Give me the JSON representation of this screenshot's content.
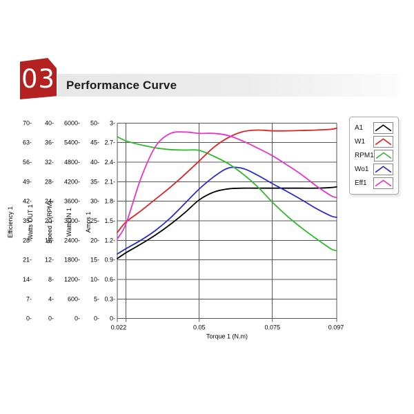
{
  "header": {
    "badge_number": "03",
    "title": "Performance Curve",
    "badge_color": "#b32121"
  },
  "chart_data": {
    "type": "line",
    "title": "Performance Curve",
    "grid": true,
    "legend_position": "top-right",
    "x_axis": {
      "title": "Torque 1 (N.m)",
      "range": [
        0.022,
        0.097
      ],
      "tick_labels": [
        "0.022",
        "0.05",
        "0.075",
        "0.097"
      ],
      "tick_values": [
        0.022,
        0.05,
        0.075,
        0.097
      ],
      "minor_tick_values": [
        0.025
      ],
      "gridline_values": [
        0.025,
        0.05,
        0.075
      ]
    },
    "y_axes": [
      {
        "title": "Efficiency 1",
        "min": 0,
        "max": 70,
        "ticks": [
          "70",
          "63",
          "56",
          "49",
          "42",
          "35",
          "28",
          "21",
          "14",
          "7",
          "0"
        ]
      },
      {
        "title": "Watts OUT 1",
        "min": 0,
        "max": 40,
        "ticks": [
          "40",
          "36",
          "32",
          "28",
          "24",
          "20",
          "16",
          "12",
          "8",
          "4",
          "0"
        ]
      },
      {
        "title": "Speed 1 (RPM)",
        "min": 0,
        "max": 6000,
        "ticks": [
          "6000",
          "5400",
          "4800",
          "4200",
          "3600",
          "3000",
          "2400",
          "1800",
          "1200",
          "600",
          "0"
        ]
      },
      {
        "title": "Watts IN 1",
        "min": 0,
        "max": 50,
        "ticks": [
          "50",
          "45",
          "40",
          "35",
          "30",
          "25",
          "20",
          "15",
          "10",
          "5",
          "0"
        ]
      },
      {
        "title": "Amps 1",
        "min": 0,
        "max": 3,
        "ticks": [
          "3",
          "2.7",
          "2.4",
          "2.1",
          "1.8",
          "1.5",
          "1.2",
          "0.9",
          "0.6",
          "0.3",
          "0"
        ]
      }
    ],
    "x": [
      0.022,
      0.025,
      0.03,
      0.035,
      0.04,
      0.045,
      0.05,
      0.055,
      0.06,
      0.065,
      0.07,
      0.075,
      0.08,
      0.085,
      0.09,
      0.095,
      0.097
    ],
    "series": [
      {
        "name": "A1",
        "color": "#000000",
        "axis": "Amps 1",
        "axis_index": 4,
        "values": [
          0.92,
          1.01,
          1.14,
          1.28,
          1.44,
          1.62,
          1.82,
          1.94,
          1.99,
          2.0,
          2.0,
          2.0,
          2.0,
          2.0,
          2.0,
          2.01,
          2.02
        ]
      },
      {
        "name": "W1",
        "color": "#dd2222",
        "axis": "Watts IN 1",
        "axis_index": 3,
        "values": [
          22.0,
          24.7,
          27.5,
          30.5,
          33.5,
          36.8,
          40.3,
          43.8,
          46.3,
          47.8,
          48.2,
          48.0,
          48.0,
          48.1,
          48.2,
          48.4,
          48.7
        ]
      },
      {
        "name": "RPM1",
        "color": "#2db92d",
        "axis": "Speed 1 (RPM)",
        "axis_index": 2,
        "values": [
          5580,
          5450,
          5330,
          5240,
          5185,
          5170,
          5160,
          4980,
          4750,
          4430,
          4040,
          3570,
          3150,
          2780,
          2450,
          2140,
          2080
        ]
      },
      {
        "name": "Wo1",
        "color": "#2929cc",
        "axis": "Watts OUT 1",
        "axis_index": 1,
        "values": [
          13.2,
          14.3,
          16.0,
          18.0,
          20.5,
          23.5,
          26.5,
          29.0,
          30.8,
          30.7,
          29.3,
          27.6,
          26.0,
          24.3,
          22.5,
          21.0,
          20.7
        ]
      },
      {
        "name": "Eff1",
        "color": "#e633cc",
        "axis": "Efficiency 1",
        "axis_index": 0,
        "values": [
          28.5,
          34.0,
          50.0,
          61.5,
          66.2,
          66.8,
          66.3,
          66.3,
          65.5,
          63.5,
          61.0,
          58.3,
          55.0,
          51.5,
          47.5,
          44.0,
          43.3
        ]
      }
    ]
  }
}
